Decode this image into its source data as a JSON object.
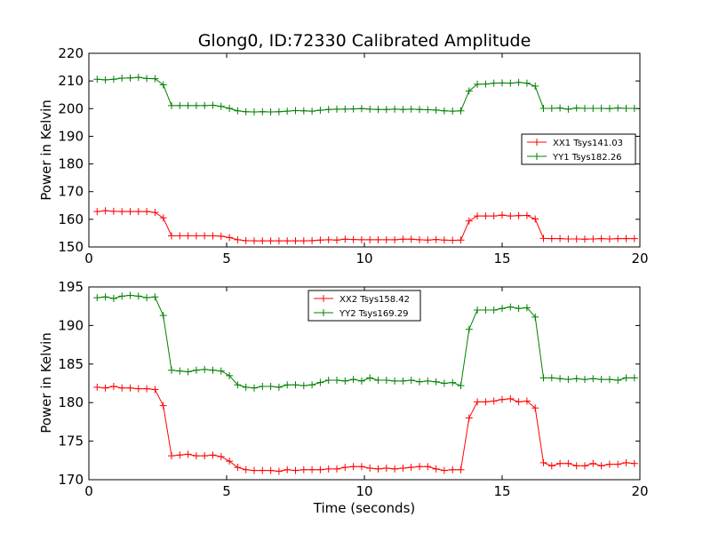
{
  "chart_data": [
    {
      "type": "line",
      "title": "Glong0, ID:72330 Calibrated Amplitude",
      "xlabel": "",
      "ylabel": "Power in Kelvin",
      "xlim": [
        0,
        20
      ],
      "ylim": [
        150,
        220
      ],
      "xticks": [
        0,
        5,
        10,
        15,
        20
      ],
      "yticks": [
        150,
        160,
        170,
        180,
        190,
        200,
        210,
        220
      ],
      "grid": false,
      "legend_position": "center-right",
      "series": [
        {
          "name": "XX1 Tsys141.03",
          "color": "#ff0000",
          "marker": "plus",
          "x": [
            0.3,
            0.6,
            0.9,
            1.2,
            1.5,
            1.8,
            2.1,
            2.4,
            2.7,
            3.0,
            3.3,
            3.6,
            3.9,
            4.2,
            4.5,
            4.8,
            5.1,
            5.4,
            5.7,
            6.0,
            6.3,
            6.6,
            6.9,
            7.2,
            7.5,
            7.8,
            8.1,
            8.4,
            8.7,
            9.0,
            9.3,
            9.6,
            9.9,
            10.2,
            10.5,
            10.8,
            11.1,
            11.4,
            11.7,
            12.0,
            12.3,
            12.6,
            12.9,
            13.2,
            13.5,
            13.8,
            14.1,
            14.4,
            14.7,
            15.0,
            15.3,
            15.6,
            15.9,
            16.2,
            16.5,
            16.8,
            17.1,
            17.4,
            17.7,
            18.0,
            18.3,
            18.6,
            18.9,
            19.2,
            19.5,
            19.8
          ],
          "y": [
            162.8,
            163.1,
            162.9,
            162.8,
            162.8,
            162.8,
            162.8,
            162.5,
            160.5,
            154.0,
            154.0,
            154.0,
            154.0,
            154.0,
            154.0,
            153.9,
            153.4,
            152.6,
            152.3,
            152.2,
            152.2,
            152.2,
            152.2,
            152.2,
            152.2,
            152.2,
            152.3,
            152.5,
            152.6,
            152.5,
            152.8,
            152.7,
            152.6,
            152.6,
            152.6,
            152.6,
            152.6,
            152.8,
            152.8,
            152.6,
            152.5,
            152.7,
            152.5,
            152.4,
            152.5,
            159.4,
            161.2,
            161.2,
            161.2,
            161.5,
            161.2,
            161.3,
            161.4,
            160.1,
            153.1,
            153.0,
            153.0,
            152.9,
            152.9,
            152.8,
            152.9,
            153.0,
            152.9,
            153.0,
            153.0,
            153.0
          ]
        },
        {
          "name": "YY1 Tsys182.26",
          "color": "#008000",
          "marker": "plus",
          "x": [
            0.3,
            0.6,
            0.9,
            1.2,
            1.5,
            1.8,
            2.1,
            2.4,
            2.7,
            3.0,
            3.3,
            3.6,
            3.9,
            4.2,
            4.5,
            4.8,
            5.1,
            5.4,
            5.7,
            6.0,
            6.3,
            6.6,
            6.9,
            7.2,
            7.5,
            7.8,
            8.1,
            8.4,
            8.7,
            9.0,
            9.3,
            9.6,
            9.9,
            10.2,
            10.5,
            10.8,
            11.1,
            11.4,
            11.7,
            12.0,
            12.3,
            12.6,
            12.9,
            13.2,
            13.5,
            13.8,
            14.1,
            14.4,
            14.7,
            15.0,
            15.3,
            15.6,
            15.9,
            16.2,
            16.5,
            16.8,
            17.1,
            17.4,
            17.7,
            18.0,
            18.3,
            18.6,
            18.9,
            19.2,
            19.5,
            19.8
          ],
          "y": [
            210.6,
            210.4,
            210.6,
            211.0,
            211.1,
            211.3,
            210.9,
            210.8,
            208.6,
            201.1,
            201.1,
            201.1,
            201.1,
            201.1,
            201.2,
            200.8,
            200.1,
            199.2,
            198.9,
            198.8,
            198.9,
            198.8,
            198.9,
            199.1,
            199.3,
            199.2,
            199.1,
            199.4,
            199.7,
            199.8,
            199.8,
            199.9,
            200.0,
            199.8,
            199.7,
            199.7,
            199.8,
            199.7,
            199.8,
            199.7,
            199.6,
            199.5,
            199.2,
            199.1,
            199.2,
            206.4,
            208.8,
            208.9,
            209.2,
            209.3,
            209.2,
            209.5,
            209.2,
            208.1,
            200.1,
            200.1,
            200.2,
            199.8,
            200.2,
            200.1,
            200.1,
            200.1,
            200.0,
            200.2,
            200.1,
            200.1
          ]
        }
      ]
    },
    {
      "type": "line",
      "title": "",
      "xlabel": "Time (seconds)",
      "ylabel": "Power in Kelvin",
      "xlim": [
        0,
        20
      ],
      "ylim": [
        170,
        195
      ],
      "xticks": [
        0,
        5,
        10,
        15,
        20
      ],
      "yticks": [
        170,
        175,
        180,
        185,
        190,
        195
      ],
      "grid": false,
      "legend_position": "top-center",
      "series": [
        {
          "name": "XX2 Tsys158.42",
          "color": "#ff0000",
          "marker": "plus",
          "x": [
            0.3,
            0.6,
            0.9,
            1.2,
            1.5,
            1.8,
            2.1,
            2.4,
            2.7,
            3.0,
            3.3,
            3.6,
            3.9,
            4.2,
            4.5,
            4.8,
            5.1,
            5.4,
            5.7,
            6.0,
            6.3,
            6.6,
            6.9,
            7.2,
            7.5,
            7.8,
            8.1,
            8.4,
            8.7,
            9.0,
            9.3,
            9.6,
            9.9,
            10.2,
            10.5,
            10.8,
            11.1,
            11.4,
            11.7,
            12.0,
            12.3,
            12.6,
            12.9,
            13.2,
            13.5,
            13.8,
            14.1,
            14.4,
            14.7,
            15.0,
            15.3,
            15.6,
            15.9,
            16.2,
            16.5,
            16.8,
            17.1,
            17.4,
            17.7,
            18.0,
            18.3,
            18.6,
            18.9,
            19.2,
            19.5,
            19.8
          ],
          "y": [
            182.0,
            181.9,
            182.1,
            181.9,
            181.9,
            181.8,
            181.8,
            181.7,
            179.6,
            173.1,
            173.2,
            173.3,
            173.1,
            173.1,
            173.2,
            173.0,
            172.4,
            171.6,
            171.3,
            171.2,
            171.2,
            171.2,
            171.1,
            171.3,
            171.2,
            171.3,
            171.3,
            171.3,
            171.4,
            171.4,
            171.6,
            171.7,
            171.7,
            171.5,
            171.4,
            171.5,
            171.4,
            171.5,
            171.6,
            171.7,
            171.7,
            171.4,
            171.2,
            171.3,
            171.3,
            178.0,
            180.1,
            180.1,
            180.2,
            180.4,
            180.5,
            180.1,
            180.2,
            179.3,
            172.2,
            171.8,
            172.1,
            172.1,
            171.8,
            171.8,
            172.1,
            171.8,
            172.0,
            172.0,
            172.2,
            172.1
          ]
        },
        {
          "name": "YY2 Tsys169.29",
          "color": "#008000",
          "marker": "plus",
          "x": [
            0.3,
            0.6,
            0.9,
            1.2,
            1.5,
            1.8,
            2.1,
            2.4,
            2.7,
            3.0,
            3.3,
            3.6,
            3.9,
            4.2,
            4.5,
            4.8,
            5.1,
            5.4,
            5.7,
            6.0,
            6.3,
            6.6,
            6.9,
            7.2,
            7.5,
            7.8,
            8.1,
            8.4,
            8.7,
            9.0,
            9.3,
            9.6,
            9.9,
            10.2,
            10.5,
            10.8,
            11.1,
            11.4,
            11.7,
            12.0,
            12.3,
            12.6,
            12.9,
            13.2,
            13.5,
            13.8,
            14.1,
            14.4,
            14.7,
            15.0,
            15.3,
            15.6,
            15.9,
            16.2,
            16.5,
            16.8,
            17.1,
            17.4,
            17.7,
            18.0,
            18.3,
            18.6,
            18.9,
            19.2,
            19.5,
            19.8
          ],
          "y": [
            193.6,
            193.7,
            193.5,
            193.8,
            193.9,
            193.8,
            193.6,
            193.7,
            191.3,
            184.2,
            184.1,
            184.0,
            184.2,
            184.3,
            184.2,
            184.1,
            183.5,
            182.3,
            182.0,
            181.9,
            182.1,
            182.1,
            182.0,
            182.3,
            182.3,
            182.2,
            182.3,
            182.6,
            182.9,
            182.9,
            182.8,
            183.0,
            182.8,
            183.2,
            182.9,
            182.9,
            182.8,
            182.8,
            182.9,
            182.7,
            182.8,
            182.7,
            182.5,
            182.6,
            182.2,
            189.5,
            192.0,
            192.0,
            192.0,
            192.2,
            192.4,
            192.2,
            192.3,
            191.1,
            183.2,
            183.2,
            183.1,
            183.0,
            183.1,
            183.0,
            183.1,
            183.0,
            183.0,
            182.9,
            183.2,
            183.2
          ]
        }
      ]
    }
  ]
}
